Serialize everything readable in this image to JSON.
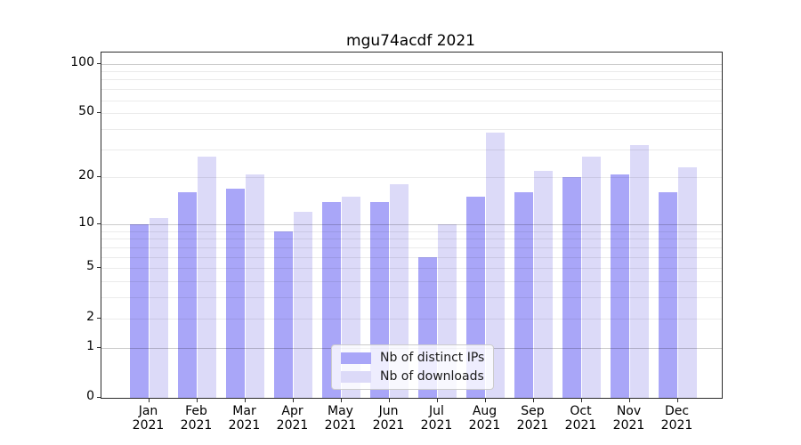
{
  "title": "mgu74acdf 2021",
  "legend": {
    "items": [
      {
        "label": "Nb of distinct IPs",
        "color": "#a9a6f8"
      },
      {
        "label": "Nb of downloads",
        "color": "#dcdaf8"
      }
    ]
  },
  "colors": {
    "bar_distinct_ips": "#a9a6f8",
    "bar_downloads": "#dcdaf8",
    "spine": "#2b2b2b"
  },
  "y_axis": {
    "tick_labels": [
      "0",
      "1",
      "2",
      "5",
      "10",
      "20",
      "50",
      "100"
    ]
  },
  "x_axis": {
    "tick_labels_line1": [
      "Jan",
      "Feb",
      "Mar",
      "Apr",
      "May",
      "Jun",
      "Jul",
      "Aug",
      "Sep",
      "Oct",
      "Nov",
      "Dec"
    ],
    "tick_labels_line2": [
      "2021",
      "2021",
      "2021",
      "2021",
      "2021",
      "2021",
      "2021",
      "2021",
      "2021",
      "2021",
      "2021",
      "2021"
    ]
  },
  "chart_data": {
    "type": "bar",
    "title": "mgu74acdf 2021",
    "categories": [
      "Jan 2021",
      "Feb 2021",
      "Mar 2021",
      "Apr 2021",
      "May 2021",
      "Jun 2021",
      "Jul 2021",
      "Aug 2021",
      "Sep 2021",
      "Oct 2021",
      "Nov 2021",
      "Dec 2021"
    ],
    "series": [
      {
        "name": "Nb of distinct IPs",
        "color": "#a9a6f8",
        "values": [
          10,
          16,
          17,
          9,
          14,
          14,
          6,
          15,
          16,
          20,
          21,
          16
        ]
      },
      {
        "name": "Nb of downloads",
        "color": "#dcdaf8",
        "values": [
          11,
          27,
          21,
          12,
          15,
          18,
          10,
          38,
          22,
          27,
          32,
          23
        ]
      }
    ],
    "xlabel": "",
    "ylabel": "",
    "yscale": "log1p",
    "yticks": [
      0,
      1,
      2,
      5,
      10,
      20,
      50,
      100
    ],
    "ylim": [
      0,
      116
    ],
    "grid": "horizontal major (1,10,100) darker + minor (2-9, 20-90) lighter",
    "legend_position": "lower center inside axes"
  }
}
